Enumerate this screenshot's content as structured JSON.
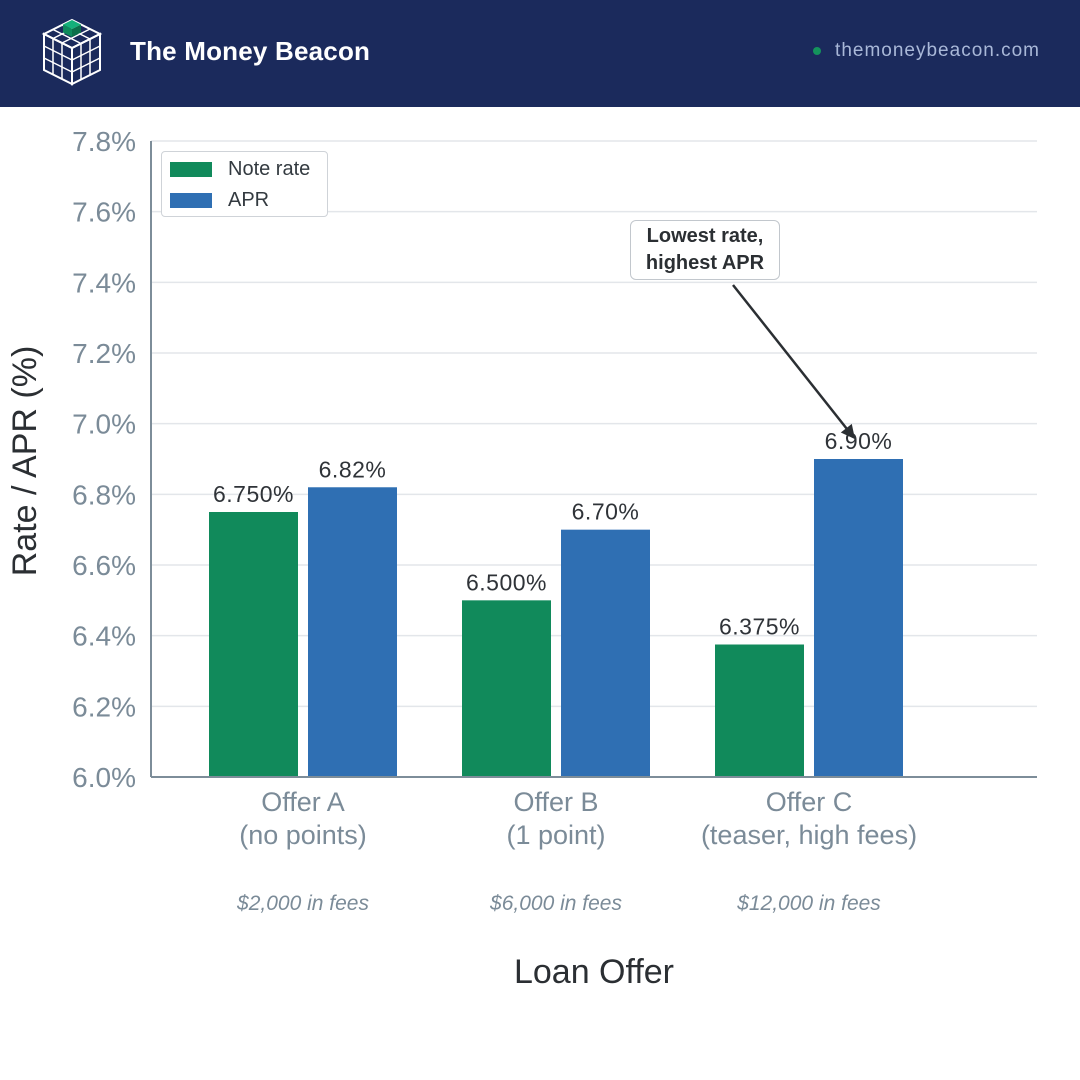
{
  "header": {
    "brand": "The Money Beacon",
    "site": "themoneybeacon.com"
  },
  "colors": {
    "header_bg": "#1b2a5c",
    "note_rate": "#118a5b",
    "apr": "#2f6fb3",
    "site_dot": "#14935c"
  },
  "icons": {
    "logo": "cube-grid-logo-icon",
    "site_dot": "dot-icon"
  },
  "chart_data": {
    "type": "bar",
    "categories": [
      [
        "Offer A",
        "(no points)"
      ],
      [
        "Offer B",
        "(1 point)"
      ],
      [
        "Offer C",
        "(teaser, high fees)"
      ]
    ],
    "fee_notes": [
      "$2,000 in fees",
      "$6,000 in fees",
      "$12,000 in fees"
    ],
    "series": [
      {
        "name": "Note rate",
        "values": [
          6.75,
          6.5,
          6.375
        ],
        "labels": [
          "6.750%",
          "6.500%",
          "6.375%"
        ]
      },
      {
        "name": "APR",
        "values": [
          6.82,
          6.7,
          6.9
        ],
        "labels": [
          "6.82%",
          "6.70%",
          "6.90%"
        ]
      }
    ],
    "xlabel": "Loan Offer",
    "ylabel": "Rate / APR (%)",
    "ylim": [
      6.0,
      7.8
    ],
    "yticks": [
      6.0,
      6.2,
      6.4,
      6.6,
      6.8,
      7.0,
      7.2,
      7.4,
      7.6,
      7.8
    ],
    "ytick_labels": [
      "6.0%",
      "6.2%",
      "6.4%",
      "6.6%",
      "6.8%",
      "7.0%",
      "7.2%",
      "7.4%",
      "7.6%",
      "7.8%"
    ],
    "grid": true,
    "legend": "top-left",
    "annotation": {
      "lines": [
        "Lowest rate,",
        "highest APR"
      ],
      "target_category": 2,
      "target_series": 1
    }
  }
}
